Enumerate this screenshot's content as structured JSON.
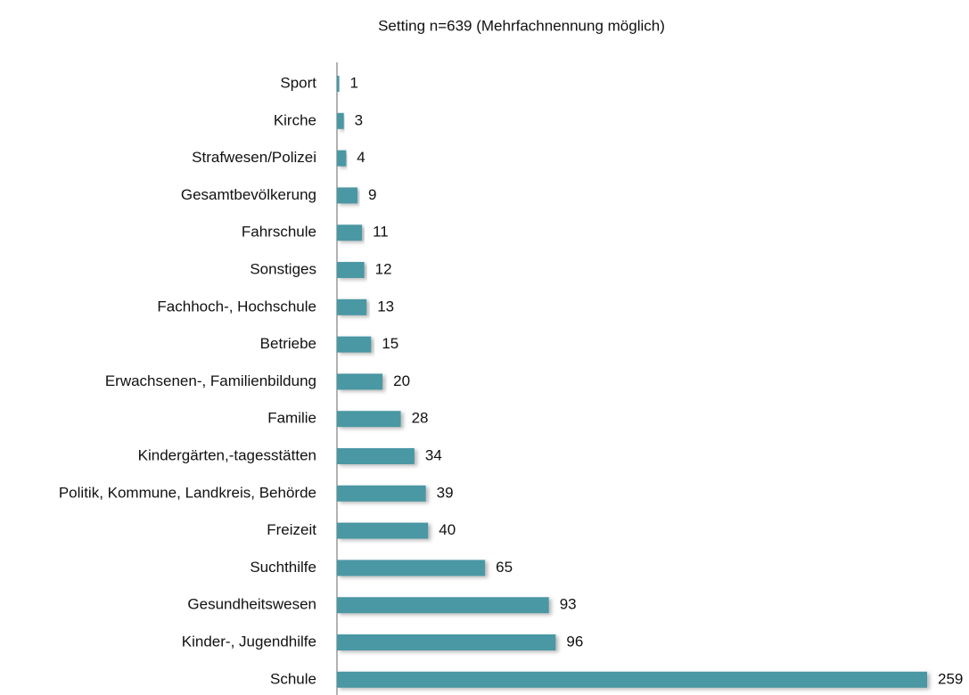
{
  "chart_data": {
    "type": "bar",
    "orientation": "horizontal",
    "title": "Setting  n=639 (Mehrfachnennung möglich)",
    "categories": [
      "Sport",
      "Kirche",
      "Strafwesen/Polizei",
      "Gesamtbevölkerung",
      "Fahrschule",
      "Sonstiges",
      "Fachhoch-, Hochschule",
      "Betriebe",
      "Erwachsenen-, Familienbildung",
      "Familie",
      "Kindergärten,-tagesstätten",
      "Politik, Kommune, Landkreis, Behörde",
      "Freizeit",
      "Suchthilfe",
      "Gesundheitswesen",
      "Kinder-, Jugendhilfe",
      "Schule"
    ],
    "values": [
      1,
      3,
      4,
      9,
      11,
      12,
      13,
      15,
      20,
      28,
      34,
      39,
      40,
      65,
      93,
      96,
      259
    ],
    "color": "#4a98a4"
  }
}
